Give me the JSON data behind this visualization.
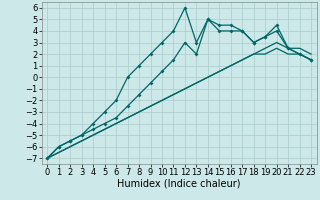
{
  "xlabel": "Humidex (Indice chaleur)",
  "background_color": "#cce8e8",
  "grid_color": "#aacccc",
  "line_color": "#006666",
  "xlim": [
    -0.5,
    23.5
  ],
  "ylim": [
    -7.5,
    6.5
  ],
  "xticks": [
    0,
    1,
    2,
    3,
    4,
    5,
    6,
    7,
    8,
    9,
    10,
    11,
    12,
    13,
    14,
    15,
    16,
    17,
    18,
    19,
    20,
    21,
    22,
    23
  ],
  "yticks": [
    6,
    5,
    4,
    3,
    2,
    1,
    0,
    -1,
    -2,
    -3,
    -4,
    -5,
    -6,
    -7
  ],
  "line1_x": [
    0,
    1,
    2,
    3,
    4,
    5,
    6,
    7,
    8,
    9,
    10,
    11,
    12,
    13,
    14,
    15,
    16,
    17,
    18,
    19,
    20,
    21,
    22,
    23
  ],
  "line1_y": [
    -7,
    -6,
    -5.5,
    -5,
    -4,
    -3,
    -2,
    0,
    1,
    2,
    3,
    4,
    6,
    3,
    5,
    4.5,
    4.5,
    4,
    3,
    3.5,
    4,
    2.5,
    2,
    1.5
  ],
  "line2_x": [
    0,
    1,
    2,
    3,
    4,
    5,
    6,
    7,
    8,
    9,
    10,
    11,
    12,
    13,
    14,
    15,
    16,
    17,
    18,
    19,
    20,
    21,
    22,
    23
  ],
  "line2_y": [
    -7,
    -6,
    -5.5,
    -5,
    -4.5,
    -4,
    -3.5,
    -2.5,
    -1.5,
    -0.5,
    0.5,
    1.5,
    3,
    2,
    5,
    4,
    4,
    4,
    3,
    3.5,
    4.5,
    2.5,
    2,
    1.5
  ],
  "line3_x": [
    0,
    1,
    2,
    3,
    4,
    5,
    6,
    7,
    8,
    9,
    10,
    11,
    12,
    13,
    14,
    15,
    16,
    17,
    18,
    19,
    20,
    21,
    22,
    23
  ],
  "line3_y": [
    -7,
    -6.5,
    -6,
    -5.5,
    -5,
    -4.5,
    -4,
    -3.5,
    -3,
    -2.5,
    -2,
    -1.5,
    -1,
    -0.5,
    0,
    0.5,
    1,
    1.5,
    2,
    2,
    2.5,
    2,
    2,
    1.5
  ],
  "line4_x": [
    0,
    1,
    2,
    3,
    4,
    5,
    6,
    7,
    8,
    9,
    10,
    11,
    12,
    13,
    14,
    15,
    16,
    17,
    18,
    19,
    20,
    21,
    22,
    23
  ],
  "line4_y": [
    -7,
    -6.5,
    -6,
    -5.5,
    -5,
    -4.5,
    -4,
    -3.5,
    -3,
    -2.5,
    -2,
    -1.5,
    -1,
    -0.5,
    0,
    0.5,
    1,
    1.5,
    2,
    2.5,
    3,
    2.5,
    2.5,
    2
  ],
  "tick_fontsize": 6,
  "label_fontsize": 7
}
